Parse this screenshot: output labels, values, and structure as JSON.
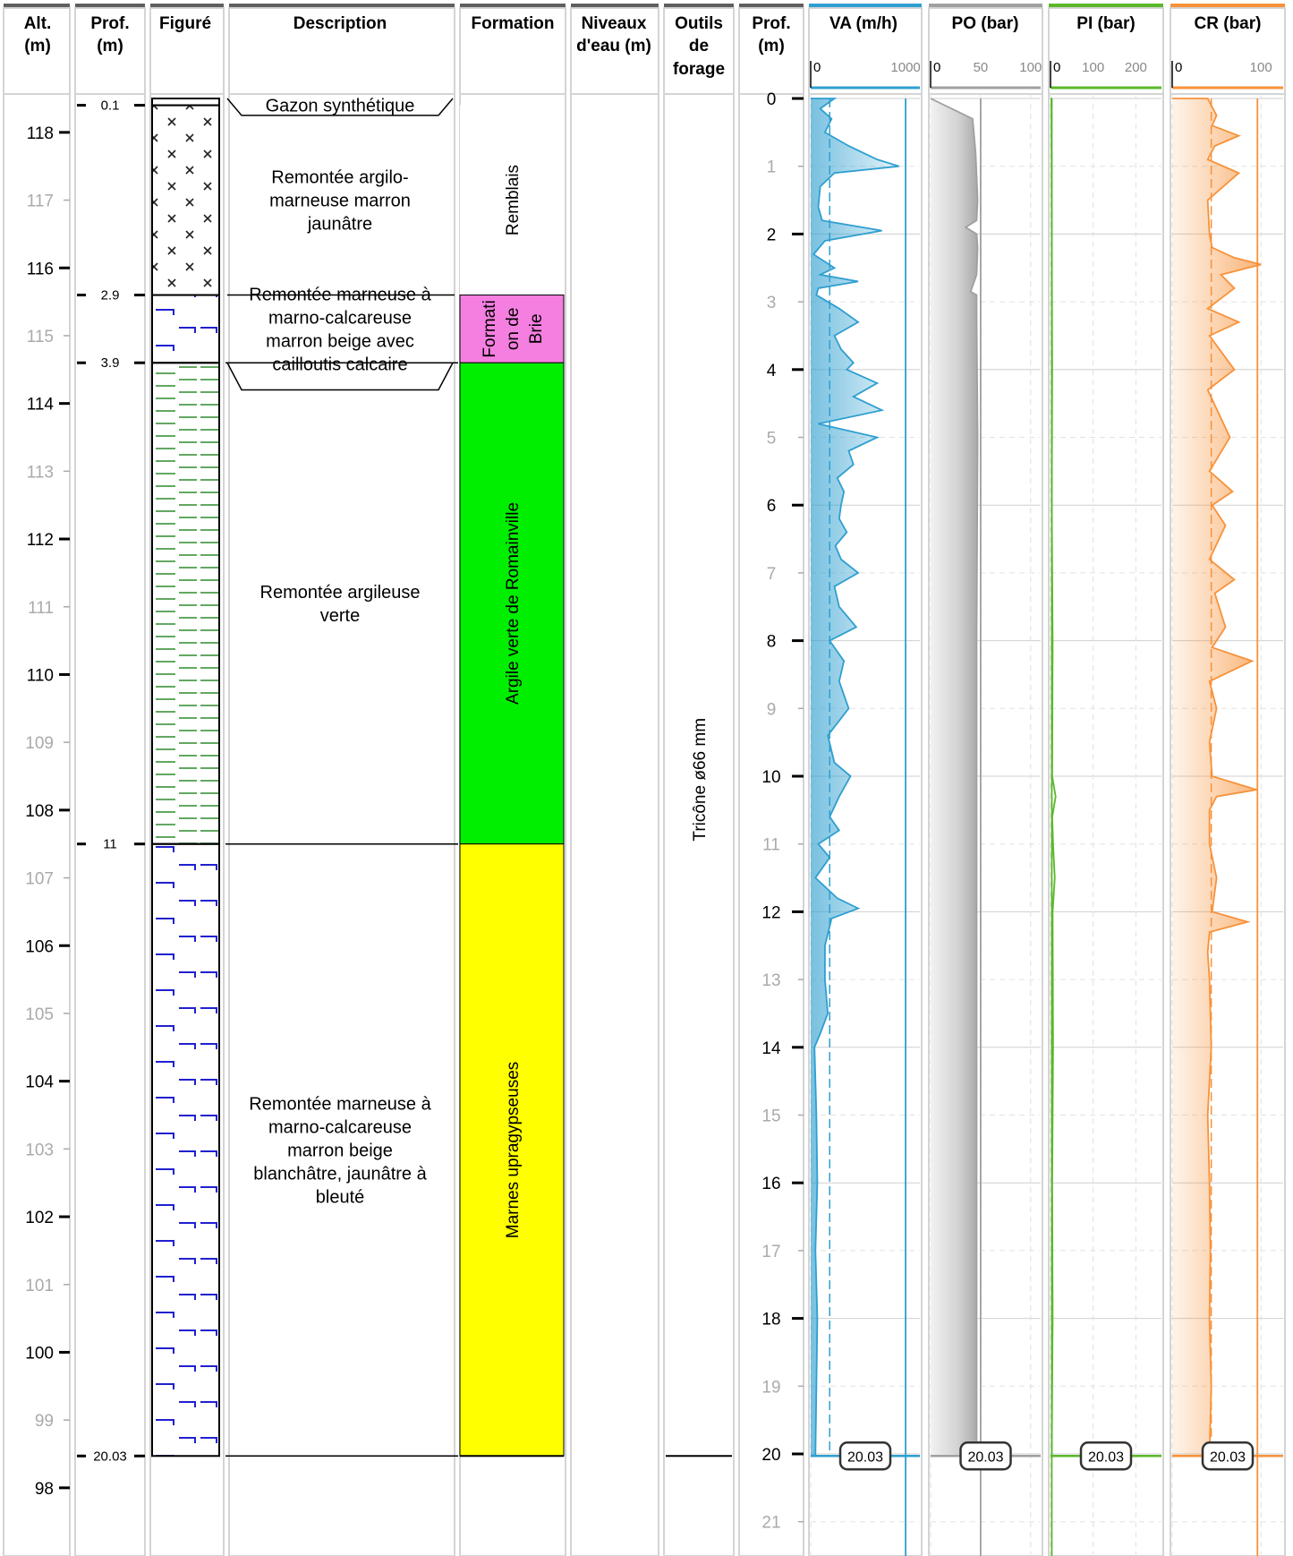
{
  "headers": {
    "alt": [
      "Alt.",
      "(m)"
    ],
    "prof": [
      "Prof.",
      "(m)"
    ],
    "figure": [
      "Figuré"
    ],
    "description": [
      "Description"
    ],
    "formation": [
      "Formation"
    ],
    "niveaux": [
      "Niveaux",
      "d'eau (m)"
    ],
    "outils": [
      "Outils",
      "de",
      "forage"
    ],
    "prof2": [
      "Prof.",
      "(m)"
    ],
    "va": "VA (m/h)",
    "po": "PO (bar)",
    "pi": "PI (bar)",
    "cr": "CR (bar)"
  },
  "colors": {
    "va": "#2e9fd0",
    "po": "#a0a0a0",
    "pi": "#5ab82a",
    "cr": "#f7923a",
    "green": "#00ee00",
    "yellow": "#ffff00",
    "pink": "#f57fe0",
    "header_bar": "#5f5f5f"
  },
  "depth_ticks": [
    "0.1",
    "2.9",
    "3.9",
    "11",
    "20.03"
  ],
  "bottom_depth": "20.03",
  "layers": [
    {
      "top": 0,
      "bottom": 0.1,
      "description": [
        "Gazon synthétique"
      ],
      "pattern": "none"
    },
    {
      "top": 0.1,
      "bottom": 2.9,
      "description": [
        "Remontée argilo-",
        "marneuse marron",
        "jaunâtre"
      ],
      "pattern": "crosses"
    },
    {
      "top": 2.9,
      "bottom": 3.9,
      "description": [
        "Remontée marneuse à",
        "marno-calcareuse",
        "marron beige avec",
        "cailloutis calcaire"
      ],
      "pattern": "marl"
    },
    {
      "top": 3.9,
      "bottom": 11,
      "description": [
        "Remontée argileuse",
        "verte"
      ],
      "pattern": "clay"
    },
    {
      "top": 11,
      "bottom": 20.03,
      "description": [
        "Remontée marneuse à",
        "marno-calcareuse",
        "marron beige",
        "blanchâtre, jaunâtre à",
        "bleuté"
      ],
      "pattern": "marl"
    }
  ],
  "formations": [
    {
      "top": 0.1,
      "bottom": 2.9,
      "lines": [
        "Remblais"
      ],
      "color": "#ffffff"
    },
    {
      "top": 2.9,
      "bottom": 3.9,
      "lines": [
        "Formati",
        "on de",
        "Brie"
      ],
      "color": "#f57fe0"
    },
    {
      "top": 3.9,
      "bottom": 11,
      "lines": [
        "Argile verte de Romainville"
      ],
      "color": "#00ee00"
    },
    {
      "top": 11,
      "bottom": 20.03,
      "lines": [
        "Marnes upragypseuses"
      ],
      "color": "#ffff00"
    }
  ],
  "tool": "Tricône ø66 mm",
  "chart_data": {
    "type": "line",
    "y_axis": {
      "label": "Prof. (m)",
      "range": [
        0,
        21.6
      ],
      "ticks": [
        0,
        1,
        2,
        3,
        4,
        5,
        6,
        7,
        8,
        9,
        10,
        11,
        12,
        13,
        14,
        15,
        16,
        17,
        18,
        19,
        20,
        21
      ]
    },
    "alt_axis": {
      "label": "Alt. (m)",
      "range": [
        98,
        118
      ],
      "ground_level": 118.5
    },
    "tracks": [
      {
        "key": "va",
        "title": "VA (m/h)",
        "xlim": [
          0,
          1150
        ],
        "ticks": [
          "0",
          "1000"
        ],
        "mean": 200,
        "ref": 1000,
        "depths": [
          0,
          0.15,
          0.3,
          0.5,
          0.7,
          0.9,
          1.0,
          1.1,
          1.3,
          1.6,
          1.8,
          1.95,
          2.1,
          2.3,
          2.5,
          2.6,
          2.7,
          2.8,
          2.9,
          3.1,
          3.3,
          3.5,
          3.7,
          3.9,
          4.0,
          4.2,
          4.4,
          4.6,
          4.8,
          5.0,
          5.2,
          5.4,
          5.6,
          5.8,
          6.0,
          6.2,
          6.4,
          6.6,
          6.8,
          7.0,
          7.2,
          7.5,
          7.8,
          8.0,
          8.3,
          8.6,
          9.0,
          9.4,
          9.8,
          10.0,
          10.3,
          10.6,
          10.8,
          11.0,
          11.2,
          11.5,
          11.8,
          11.95,
          12.1,
          12.5,
          13,
          13.5,
          13.8,
          14,
          15,
          16,
          17,
          18,
          19,
          20,
          20.03
        ],
        "values": [
          250,
          100,
          220,
          150,
          400,
          700,
          930,
          250,
          100,
          80,
          120,
          750,
          150,
          30,
          250,
          100,
          500,
          80,
          60,
          300,
          500,
          250,
          320,
          450,
          380,
          700,
          450,
          750,
          80,
          700,
          400,
          450,
          280,
          350,
          320,
          300,
          380,
          260,
          320,
          500,
          250,
          300,
          480,
          200,
          350,
          300,
          400,
          180,
          250,
          420,
          300,
          200,
          300,
          80,
          200,
          50,
          280,
          500,
          220,
          150,
          150,
          180,
          100,
          40,
          60,
          70,
          50,
          70,
          60,
          50,
          50
        ]
      },
      {
        "key": "po",
        "title": "PO (bar)",
        "xlim": [
          0,
          110
        ],
        "ticks": [
          "0",
          "50",
          "100"
        ],
        "mean": 50,
        "ref": 50,
        "depths": [
          0,
          0.3,
          0.8,
          1.5,
          1.8,
          1.9,
          2.0,
          2.2,
          2.6,
          2.85,
          2.9,
          3.2,
          5,
          8,
          11,
          14,
          17,
          20,
          20.03
        ],
        "values": [
          0,
          42,
          45,
          47,
          46,
          35,
          46,
          47,
          46,
          40,
          46,
          46,
          47,
          46,
          46,
          46,
          46,
          46,
          46
        ]
      },
      {
        "key": "pi",
        "title": "PI (bar)",
        "xlim": [
          0,
          260
        ],
        "ticks": [
          "0",
          "100",
          "200"
        ],
        "mean": 3,
        "ref": 3,
        "depths": [
          0,
          2,
          4,
          6,
          8,
          10,
          10.3,
          10.6,
          11,
          11.5,
          12,
          14,
          16,
          18,
          20,
          20.03
        ],
        "values": [
          2,
          3,
          4,
          3,
          5,
          4,
          12,
          4,
          6,
          10,
          5,
          6,
          4,
          5,
          3,
          3
        ]
      },
      {
        "key": "cr",
        "title": "CR (bar)",
        "xlim": [
          0,
          125
        ],
        "ticks": [
          "0",
          "100"
        ],
        "mean": 44,
        "ref": 96,
        "depths": [
          0,
          0.25,
          0.4,
          0.55,
          0.7,
          0.9,
          1.1,
          1.5,
          2.0,
          2.2,
          2.35,
          2.45,
          2.6,
          2.8,
          3.1,
          3.3,
          3.5,
          4.0,
          4.3,
          5.0,
          5.5,
          5.8,
          6.0,
          6.3,
          6.8,
          7.1,
          7.3,
          7.8,
          8.1,
          8.3,
          8.6,
          9.0,
          9.5,
          10.0,
          10.2,
          10.3,
          10.5,
          11,
          11.5,
          12.0,
          12.15,
          12.3,
          12.6,
          13,
          14,
          15,
          16,
          17,
          18,
          19,
          20,
          20.03
        ],
        "values": [
          40,
          50,
          45,
          75,
          48,
          40,
          75,
          40,
          42,
          45,
          70,
          100,
          55,
          70,
          40,
          75,
          42,
          70,
          40,
          65,
          42,
          68,
          45,
          60,
          42,
          70,
          48,
          60,
          45,
          90,
          42,
          50,
          42,
          45,
          95,
          50,
          42,
          42,
          50,
          45,
          85,
          42,
          40,
          42,
          44,
          40,
          42,
          43,
          42,
          44,
          42,
          42
        ]
      }
    ]
  }
}
